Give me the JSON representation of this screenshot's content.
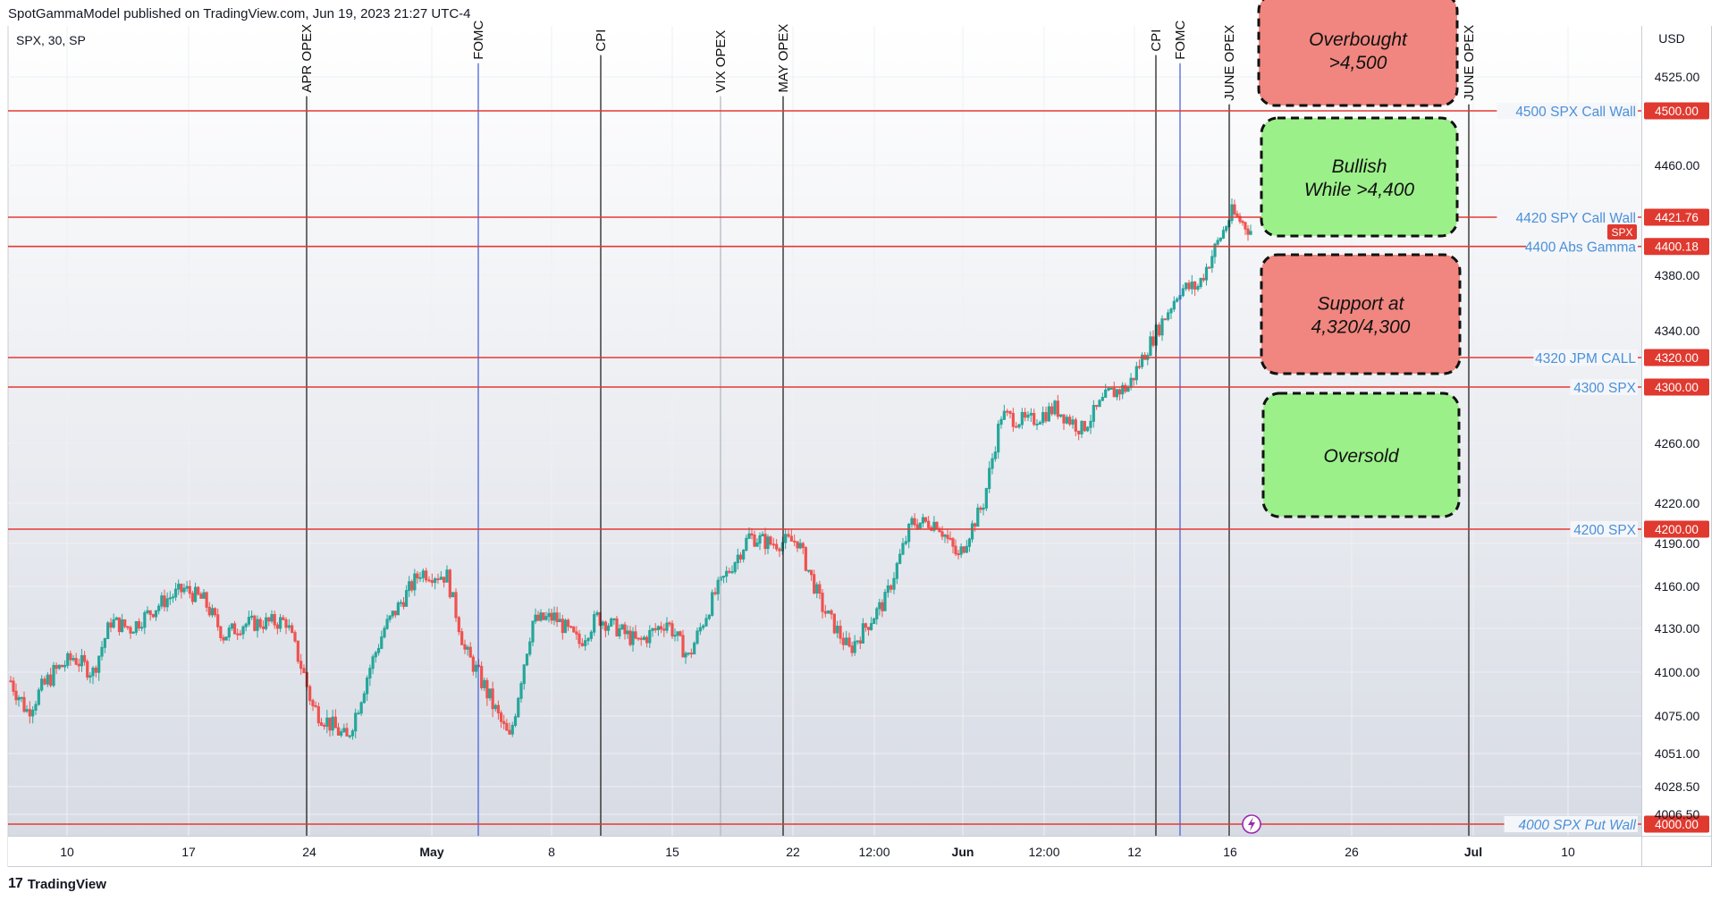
{
  "header": {
    "published": "SpotGammaModel published on TradingView.com, Jun 19, 2023 21:27 UTC-4",
    "symbol": "SPX, 30, SP"
  },
  "footer": {
    "logo": "17",
    "brand": "TradingView"
  },
  "colors": {
    "level_line": "#e53935",
    "level_text": "#4a90d9",
    "price_tag": "#e0392f",
    "up": "#26a69a",
    "down": "#ef5350",
    "box_red": "#f0867f",
    "box_green": "#9cf08a"
  },
  "chart_data": {
    "type": "candlestick",
    "title": "SPX, 30, SP",
    "currency": "USD",
    "y_ticks": [
      "4525.00",
      "4460.00",
      "4380.00",
      "4340.00",
      "4260.00",
      "4220.00",
      "4190.00",
      "4160.00",
      "4130.00",
      "4100.00",
      "4075.00",
      "4051.00",
      "4028.50",
      "4006.50"
    ],
    "x_ticks": [
      {
        "label": "10",
        "bold": false
      },
      {
        "label": "17",
        "bold": false
      },
      {
        "label": "24",
        "bold": false
      },
      {
        "label": "May",
        "bold": true
      },
      {
        "label": "8",
        "bold": false
      },
      {
        "label": "15",
        "bold": false
      },
      {
        "label": "22",
        "bold": false
      },
      {
        "label": "12:00",
        "bold": false
      },
      {
        "label": "Jun",
        "bold": true
      },
      {
        "label": "12:00",
        "bold": false
      },
      {
        "label": "12",
        "bold": false
      },
      {
        "label": "16",
        "bold": false
      },
      {
        "label": "26",
        "bold": false
      },
      {
        "label": "Jul",
        "bold": true
      },
      {
        "label": "10",
        "bold": false
      }
    ],
    "levels": [
      {
        "label": "4500 SPX Call Wall",
        "tag": "4500.00",
        "italic": false
      },
      {
        "label": "4420 SPY Call Wall",
        "tag": "4421.76",
        "italic": false
      },
      {
        "label": "4400 Abs Gamma",
        "tag": "4400.18",
        "italic": false
      },
      {
        "label": "4320 JPM CALL",
        "tag": "4320.00",
        "italic": false
      },
      {
        "label": "4300 SPX",
        "tag": "4300.00",
        "italic": false
      },
      {
        "label": "4200 SPX",
        "tag": "4200.00",
        "italic": false
      },
      {
        "label": "4000 SPX Put Wall",
        "tag": "4000.00",
        "italic": true
      }
    ],
    "symbol_tag": "SPX",
    "events": [
      {
        "label": "APR OPEX",
        "style": "black"
      },
      {
        "label": "FOMC",
        "style": "blue"
      },
      {
        "label": "CPI",
        "style": "black"
      },
      {
        "label": "VIX OPEX",
        "style": "gray"
      },
      {
        "label": "MAY OPEX",
        "style": "black"
      },
      {
        "label": "CPI",
        "style": "black"
      },
      {
        "label": "FOMC",
        "style": "blue"
      },
      {
        "label": "JUNE OPEX",
        "style": "black"
      },
      {
        "label": "JUNE OPEX",
        "style": "black"
      }
    ],
    "zones": [
      {
        "line1": "Overbought",
        "line2": ">4,500",
        "color": "red"
      },
      {
        "line1": "Bullish",
        "line2": "While >4,400",
        "color": "green"
      },
      {
        "line1": "Support at",
        "line2": "4,320/4,300",
        "color": "red"
      },
      {
        "line1": "Oversold",
        "line2": "",
        "color": "green"
      }
    ],
    "price_path": [
      [
        "Apr 06",
        4095
      ],
      [
        "Apr 07",
        4078
      ],
      [
        "Apr 10",
        4100
      ],
      [
        "Apr 11",
        4110
      ],
      [
        "Apr 12",
        4100
      ],
      [
        "Apr 13",
        4135
      ],
      [
        "Apr 14",
        4130
      ],
      [
        "Apr 17",
        4150
      ],
      [
        "Apr 18",
        4158
      ],
      [
        "Apr 19",
        4150
      ],
      [
        "Apr 20",
        4125
      ],
      [
        "Apr 21",
        4133
      ],
      [
        "Apr 24",
        4135
      ],
      [
        "Apr 25",
        4080
      ],
      [
        "Apr 26",
        4060
      ],
      [
        "Apr 27",
        4130
      ],
      [
        "Apr 28",
        4170
      ],
      [
        "May 01",
        4167
      ],
      [
        "May 02",
        4115
      ],
      [
        "May 03",
        4085
      ],
      [
        "May 04",
        4060
      ],
      [
        "May 05",
        4135
      ],
      [
        "May 08",
        4138
      ],
      [
        "May 09",
        4120
      ],
      [
        "May 10",
        4138
      ],
      [
        "May 11",
        4130
      ],
      [
        "May 12",
        4120
      ],
      [
        "May 15",
        4135
      ],
      [
        "May 16",
        4110
      ],
      [
        "May 17",
        4155
      ],
      [
        "May 18",
        4195
      ],
      [
        "May 19",
        4190
      ],
      [
        "May 22",
        4192
      ],
      [
        "May 23",
        4145
      ],
      [
        "May 24",
        4115
      ],
      [
        "May 25",
        4150
      ],
      [
        "May 26",
        4205
      ],
      [
        "May 30",
        4205
      ],
      [
        "May 31",
        4180
      ],
      [
        "Jun 01",
        4220
      ],
      [
        "Jun 02",
        4280
      ],
      [
        "Jun 05",
        4275
      ],
      [
        "Jun 06",
        4285
      ],
      [
        "Jun 07",
        4270
      ],
      [
        "Jun 08",
        4295
      ],
      [
        "Jun 09",
        4300
      ],
      [
        "Jun 12",
        4335
      ],
      [
        "Jun 13",
        4370
      ],
      [
        "Jun 14",
        4372
      ],
      [
        "Jun 15",
        4425
      ],
      [
        "Jun 16",
        4410
      ]
    ]
  }
}
